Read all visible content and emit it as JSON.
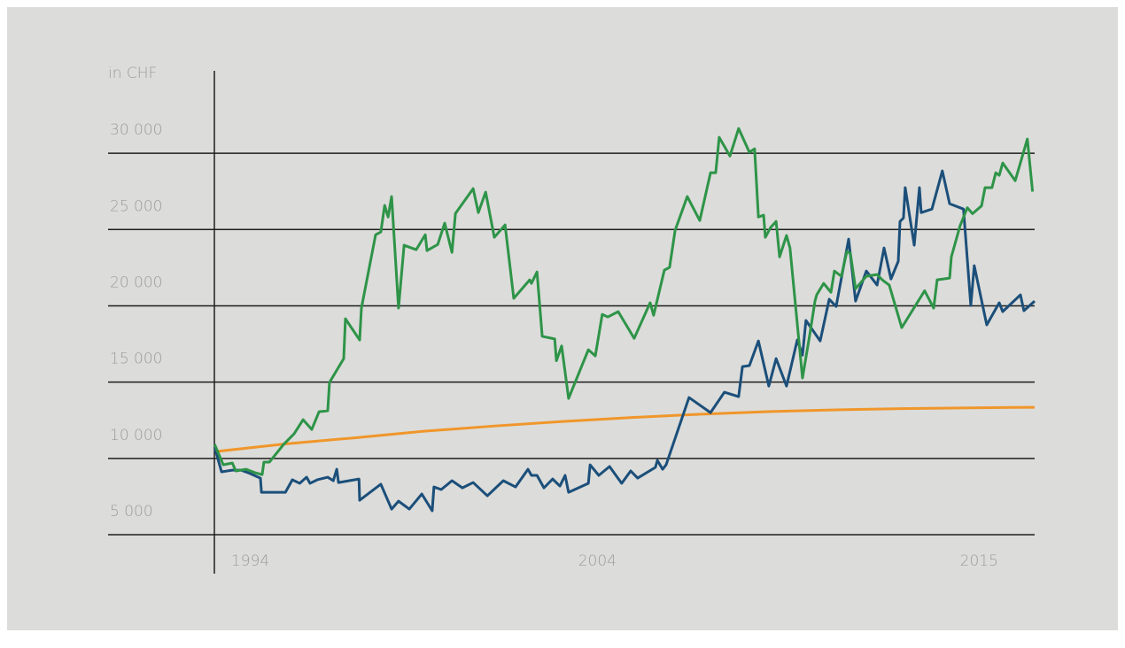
{
  "chart_data": {
    "type": "line",
    "y_label": "in CHF",
    "xlim": [
      1989.9,
      2016.6
    ],
    "xticks": [
      1994,
      2004,
      2015
    ],
    "ylim": [
      2450,
      35400
    ],
    "yticks": [
      {
        "value": 5000,
        "label": "5 000"
      },
      {
        "value": 10000,
        "label": "10 000"
      },
      {
        "value": 15000,
        "label": "15 000"
      },
      {
        "value": 20000,
        "label": "20 000"
      },
      {
        "value": 25000,
        "label": "25 000"
      },
      {
        "value": 30000,
        "label": "30 000"
      }
    ],
    "grid": true,
    "series": [
      {
        "color": "#f0962a",
        "x": [
          1993.0,
          1995,
          1997,
          1999,
          2001,
          2003,
          2005,
          2007,
          2009,
          2011,
          2013,
          2015,
          2016.6
        ],
        "values": [
          10450,
          10950,
          11350,
          11780,
          12120,
          12420,
          12680,
          12900,
          13070,
          13190,
          13270,
          13320,
          13350
        ]
      },
      {
        "color": "#1b4f7a",
        "x": [
          1992.97,
          1993.17,
          1993.48,
          1993.73,
          1993.94,
          1994.29,
          1994.32,
          1995.01,
          1995.21,
          1995.42,
          1995.62,
          1995.72,
          1995.93,
          1996.23,
          1996.39,
          1996.49,
          1996.54,
          1997.13,
          1997.15,
          1997.76,
          1998.07,
          1998.27,
          1998.58,
          1998.94,
          1999.24,
          1999.29,
          1999.5,
          1999.81,
          2000.11,
          2000.42,
          2000.83,
          2001.29,
          2001.64,
          2002.0,
          2002.1,
          2002.26,
          2002.46,
          2002.71,
          2002.92,
          2003.07,
          2003.17,
          2003.74,
          2003.79,
          2004.04,
          2004.35,
          2004.7,
          2004.96,
          2005.16,
          2005.67,
          2005.73,
          2005.88,
          2005.98,
          2006.64,
          2007.26,
          2007.66,
          2008.07,
          2008.18,
          2008.38,
          2008.64,
          2008.94,
          2009.15,
          2009.45,
          2009.76,
          2009.91,
          2010.01,
          2010.42,
          2010.68,
          2010.88,
          2011.24,
          2011.44,
          2011.75,
          2012.06,
          2012.26,
          2012.46,
          2012.67,
          2012.72,
          2012.82,
          2012.87,
          2013.13,
          2013.28,
          2013.33,
          2013.64,
          2013.94,
          2014.15,
          2014.55,
          2014.76,
          2014.86,
          2015.22,
          2015.58,
          2015.68,
          2016.19,
          2016.29,
          2016.6
        ],
        "values": [
          10740,
          9120,
          9230,
          9230,
          9060,
          8710,
          7780,
          7780,
          8600,
          8370,
          8770,
          8370,
          8600,
          8770,
          8540,
          9290,
          8420,
          8650,
          7260,
          8310,
          6680,
          7200,
          6680,
          7670,
          6570,
          8130,
          7960,
          8540,
          8070,
          8420,
          7550,
          8540,
          8130,
          9290,
          8890,
          8890,
          8070,
          8650,
          8190,
          8890,
          7780,
          8370,
          9580,
          8890,
          9470,
          8370,
          9180,
          8710,
          9410,
          9870,
          9290,
          9580,
          13990,
          13000,
          14340,
          14050,
          16020,
          16080,
          17700,
          14740,
          16540,
          14740,
          17760,
          16770,
          19040,
          17700,
          20430,
          19960,
          24370,
          20310,
          22280,
          21360,
          23790,
          21760,
          22920,
          25530,
          25760,
          27740,
          23970,
          27740,
          26110,
          26340,
          28840,
          26690,
          26340,
          20020,
          22630,
          18750,
          20200,
          19620,
          20720,
          19680,
          20310
        ]
      },
      {
        "color": "#2e9448",
        "x": [
          1992.97,
          1993.22,
          1993.48,
          1993.58,
          1993.88,
          1994.14,
          1994.34,
          1994.39,
          1994.55,
          1994.96,
          1995.26,
          1995.52,
          1995.77,
          1995.98,
          1996.23,
          1996.28,
          1996.69,
          1996.74,
          1997.15,
          1997.2,
          1997.61,
          1997.76,
          1997.87,
          1997.97,
          1998.07,
          1998.27,
          1998.43,
          1998.78,
          1999.04,
          1999.09,
          1999.4,
          1999.6,
          1999.81,
          1999.91,
          2000.42,
          2000.57,
          2000.78,
          2001.03,
          2001.34,
          2001.59,
          2002.05,
          2002.1,
          2002.26,
          2002.41,
          2002.77,
          2002.82,
          2002.97,
          2003.17,
          2003.74,
          2003.94,
          2004.14,
          2004.3,
          2004.6,
          2005.06,
          2005.52,
          2005.62,
          2005.93,
          2006.08,
          2006.24,
          2006.59,
          2006.95,
          2007.26,
          2007.41,
          2007.51,
          2007.82,
          2008.07,
          2008.38,
          2008.53,
          2008.64,
          2008.79,
          2008.84,
          2008.99,
          2009.15,
          2009.25,
          2009.45,
          2009.55,
          2009.91,
          2010.12,
          2010.27,
          2010.32,
          2010.52,
          2010.73,
          2010.83,
          2011.03,
          2011.19,
          2011.29,
          2011.44,
          2011.75,
          2012.06,
          2012.21,
          2012.41,
          2012.77,
          2013.43,
          2013.69,
          2013.79,
          2014.15,
          2014.2,
          2014.45,
          2014.66,
          2014.81,
          2015.07,
          2015.17,
          2015.37,
          2015.48,
          2015.58,
          2015.68,
          2016.04,
          2016.39,
          2016.54
        ],
        "values": [
          10920,
          9580,
          9700,
          9180,
          9290,
          9060,
          8940,
          9760,
          9760,
          10920,
          11610,
          12540,
          11900,
          13060,
          13120,
          14980,
          16540,
          19150,
          17760,
          19850,
          24660,
          24840,
          26580,
          25820,
          27160,
          19850,
          23970,
          23680,
          24660,
          23620,
          24020,
          25420,
          23500,
          26050,
          27680,
          26110,
          27450,
          24490,
          25300,
          20490,
          21700,
          21470,
          22220,
          18000,
          17830,
          16400,
          17370,
          13930,
          17120,
          16720,
          19440,
          19270,
          19620,
          17870,
          20200,
          19380,
          22340,
          22520,
          24950,
          27160,
          25590,
          28720,
          28720,
          31040,
          29820,
          31620,
          30060,
          30290,
          25820,
          25940,
          24490,
          25130,
          25530,
          23210,
          24610,
          23790,
          15270,
          18110,
          20310,
          20720,
          21470,
          20890,
          22280,
          21940,
          23560,
          23440,
          21120,
          21940,
          22050,
          21700,
          21360,
          18570,
          20990,
          19850,
          21700,
          21820,
          23210,
          25240,
          26430,
          26040,
          26550,
          27740,
          27740,
          28720,
          28550,
          29360,
          28200,
          30930,
          27480
        ]
      }
    ]
  }
}
